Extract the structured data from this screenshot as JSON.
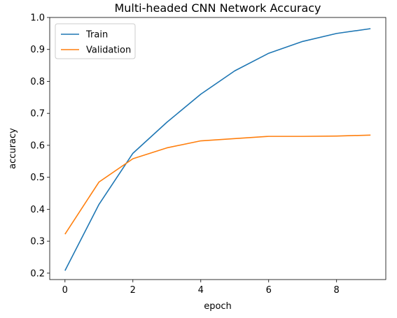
{
  "chart_data": {
    "type": "line",
    "title": "Multi-headed CNN Network Accuracy",
    "xlabel": "epoch",
    "ylabel": "accuracy",
    "x": [
      0,
      1,
      2,
      3,
      4,
      5,
      6,
      7,
      8,
      9
    ],
    "xlim": [
      -0.45,
      9.45
    ],
    "ylim": [
      0.18,
      1.0
    ],
    "xticks": [
      0,
      2,
      4,
      6,
      8
    ],
    "xtick_labels": [
      "0",
      "2",
      "4",
      "6",
      "8"
    ],
    "yticks": [
      0.2,
      0.3,
      0.4,
      0.5,
      0.6,
      0.7,
      0.8,
      0.9,
      1.0
    ],
    "ytick_labels": [
      "0.2",
      "0.3",
      "0.4",
      "0.5",
      "0.6",
      "0.7",
      "0.8",
      "0.9",
      "1.0"
    ],
    "grid": false,
    "legend_position": "top-left",
    "series": [
      {
        "name": "Train",
        "color": "#1f77b4",
        "values": [
          0.208,
          0.415,
          0.575,
          0.672,
          0.76,
          0.833,
          0.888,
          0.925,
          0.95,
          0.965
        ]
      },
      {
        "name": "Validation",
        "color": "#ff7f0e",
        "values": [
          0.322,
          0.485,
          0.558,
          0.592,
          0.614,
          0.621,
          0.628,
          0.628,
          0.629,
          0.632
        ]
      }
    ]
  }
}
